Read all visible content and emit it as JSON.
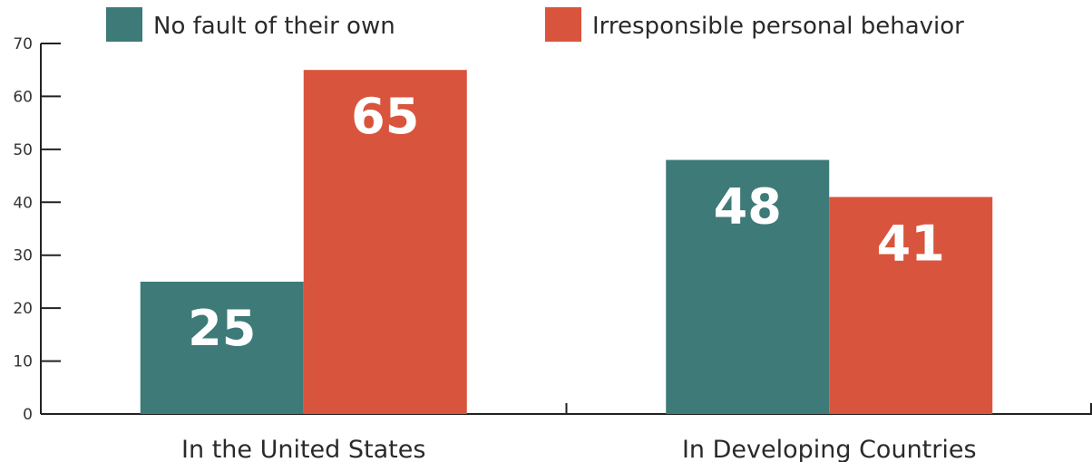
{
  "chart_data": {
    "type": "bar",
    "categories": [
      "In the United States",
      "In Developing Countries"
    ],
    "series": [
      {
        "name": "No fault of their own",
        "values": [
          25,
          48
        ],
        "color": "#3d7a78"
      },
      {
        "name": "Irresponsible personal behavior",
        "values": [
          65,
          41
        ],
        "color": "#d9543c"
      }
    ],
    "ylim": [
      0,
      70
    ],
    "yticks": [
      0,
      10,
      20,
      30,
      40,
      50,
      60,
      70
    ],
    "grid": false,
    "legend_position": "top",
    "data_labels": true
  }
}
